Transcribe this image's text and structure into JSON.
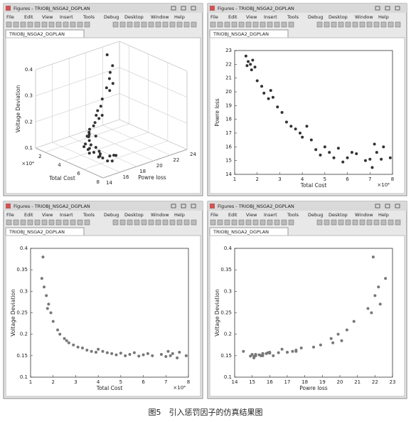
{
  "window": {
    "title": "Figures - TRIOBJ_NSGA2_DGPLAN",
    "menu": [
      "File",
      "Edit",
      "View",
      "Insert",
      "Tools",
      "Debug",
      "Desktop",
      "Window",
      "Help"
    ],
    "tab": "TRIOBJ_NSGA2_DGPLAN"
  },
  "caption": "图5　引入惩罚因子的仿真结果图",
  "chart_data": [
    {
      "type": "scatter3d",
      "xlabel": "Total Cost",
      "ylabel": "Powre loss",
      "zlabel": "Voltage Deviation",
      "x_scale_label": "×10⁴",
      "color": "#333333",
      "x": [
        1.5,
        1.6,
        1.55,
        1.7,
        1.8,
        1.75,
        1.9,
        2.0,
        2.2,
        2.3,
        2.5,
        2.6,
        2.7,
        2.9,
        3.1,
        3.3,
        3.5,
        3.7,
        3.9,
        4.0,
        4.2,
        4.4,
        4.6,
        4.8,
        5.0,
        5.2,
        5.4,
        5.6,
        5.8,
        6.0,
        6.2,
        6.4,
        6.8,
        7.0,
        7.1,
        7.2,
        7.3,
        7.5,
        7.6,
        7.9
      ],
      "y": [
        22.6,
        22.2,
        21.9,
        22.0,
        22.3,
        21.6,
        21.8,
        20.8,
        20.4,
        19.9,
        19.5,
        20.1,
        19.6,
        18.9,
        18.5,
        17.8,
        17.5,
        17.3,
        17.0,
        16.7,
        17.5,
        16.5,
        15.8,
        15.4,
        16.0,
        15.6,
        15.2,
        15.9,
        14.9,
        15.2,
        15.6,
        15.5,
        15.0,
        15.1,
        14.5,
        16.2,
        15.6,
        15.1,
        16.0,
        15.2
      ],
      "z": [
        0.33,
        0.31,
        0.38,
        0.29,
        0.27,
        0.26,
        0.25,
        0.23,
        0.21,
        0.2,
        0.19,
        0.185,
        0.18,
        0.175,
        0.17,
        0.168,
        0.163,
        0.16,
        0.158,
        0.165,
        0.16,
        0.157,
        0.155,
        0.152,
        0.156,
        0.15,
        0.153,
        0.157,
        0.149,
        0.152,
        0.155,
        0.15,
        0.153,
        0.148,
        0.16,
        0.15,
        0.155,
        0.145,
        0.158,
        0.15
      ],
      "xlim": [
        1,
        8
      ],
      "xticks": [
        2,
        4,
        6,
        8
      ],
      "ylim": [
        14,
        24
      ],
      "yticks": [
        14,
        16,
        18,
        20,
        22,
        24
      ],
      "zlim": [
        0.1,
        0.4
      ],
      "zticks": [
        0.1,
        0.2,
        0.3,
        0.4
      ]
    },
    {
      "type": "scatter",
      "xlabel": "Total Cost",
      "ylabel": "Powre loss",
      "x_scale_label": "×10⁴",
      "color": "#333333",
      "x": [
        1.5,
        1.6,
        1.55,
        1.7,
        1.8,
        1.75,
        1.9,
        2.0,
        2.2,
        2.3,
        2.5,
        2.6,
        2.7,
        2.9,
        3.1,
        3.3,
        3.5,
        3.7,
        3.9,
        4.0,
        4.2,
        4.4,
        4.6,
        4.8,
        5.0,
        5.2,
        5.4,
        5.6,
        5.8,
        6.0,
        6.2,
        6.4,
        6.8,
        7.0,
        7.1,
        7.2,
        7.3,
        7.5,
        7.6,
        7.9
      ],
      "values": [
        22.6,
        22.2,
        21.9,
        22.0,
        22.3,
        21.6,
        21.8,
        20.8,
        20.4,
        19.9,
        19.5,
        20.1,
        19.6,
        18.9,
        18.5,
        17.8,
        17.5,
        17.3,
        17.0,
        16.7,
        17.5,
        16.5,
        15.8,
        15.4,
        16.0,
        15.6,
        15.2,
        15.9,
        14.9,
        15.2,
        15.6,
        15.5,
        15.0,
        15.1,
        14.5,
        16.2,
        15.6,
        15.1,
        16.0,
        15.2
      ],
      "xlim": [
        1,
        8
      ],
      "xticks": [
        1,
        2,
        3,
        4,
        5,
        6,
        7,
        8
      ],
      "ylim": [
        14,
        23
      ],
      "yticks": [
        14,
        15,
        16,
        17,
        18,
        19,
        20,
        21,
        22,
        23
      ]
    },
    {
      "type": "scatter",
      "xlabel": "Total Cost",
      "ylabel": "Voltage Deviation",
      "x_scale_label": "×10⁴",
      "color": "#777777",
      "x": [
        1.5,
        1.6,
        1.55,
        1.7,
        1.8,
        1.75,
        1.9,
        2.0,
        2.2,
        2.3,
        2.5,
        2.6,
        2.7,
        2.9,
        3.1,
        3.3,
        3.5,
        3.7,
        3.9,
        4.0,
        4.2,
        4.4,
        4.6,
        4.8,
        5.0,
        5.2,
        5.4,
        5.6,
        5.8,
        6.0,
        6.2,
        6.4,
        6.8,
        7.0,
        7.1,
        7.2,
        7.3,
        7.5,
        7.6,
        7.9
      ],
      "values": [
        0.33,
        0.31,
        0.38,
        0.29,
        0.27,
        0.26,
        0.25,
        0.23,
        0.21,
        0.2,
        0.19,
        0.185,
        0.18,
        0.175,
        0.17,
        0.168,
        0.163,
        0.16,
        0.158,
        0.165,
        0.16,
        0.157,
        0.155,
        0.152,
        0.156,
        0.15,
        0.153,
        0.157,
        0.149,
        0.152,
        0.155,
        0.15,
        0.153,
        0.148,
        0.16,
        0.15,
        0.155,
        0.145,
        0.158,
        0.15
      ],
      "xlim": [
        1,
        8
      ],
      "xticks": [
        1,
        2,
        3,
        4,
        5,
        6,
        7,
        8
      ],
      "ylim": [
        0.1,
        0.4
      ],
      "yticks": [
        0.1,
        0.15,
        0.2,
        0.25,
        0.3,
        0.35,
        0.4
      ]
    },
    {
      "type": "scatter",
      "xlabel": "Powre loss",
      "ylabel": "Voltage Deviation",
      "color": "#777777",
      "x": [
        22.6,
        22.2,
        21.9,
        22.0,
        22.3,
        21.6,
        21.8,
        20.8,
        20.4,
        19.9,
        19.5,
        20.1,
        19.6,
        18.9,
        18.5,
        17.8,
        17.5,
        17.3,
        17.0,
        16.7,
        17.5,
        16.5,
        15.8,
        15.4,
        16.0,
        15.6,
        15.2,
        15.9,
        14.9,
        15.2,
        15.6,
        15.5,
        15.0,
        15.1,
        14.5,
        16.2,
        15.6,
        15.1,
        16.0,
        15.2
      ],
      "values": [
        0.33,
        0.31,
        0.38,
        0.29,
        0.27,
        0.26,
        0.25,
        0.23,
        0.21,
        0.2,
        0.19,
        0.185,
        0.18,
        0.175,
        0.17,
        0.168,
        0.163,
        0.16,
        0.158,
        0.165,
        0.16,
        0.157,
        0.155,
        0.152,
        0.156,
        0.15,
        0.153,
        0.157,
        0.149,
        0.152,
        0.155,
        0.15,
        0.153,
        0.148,
        0.16,
        0.15,
        0.155,
        0.145,
        0.158,
        0.15
      ],
      "xlim": [
        14,
        23
      ],
      "xticks": [
        14,
        15,
        16,
        17,
        18,
        19,
        20,
        21,
        22,
        23
      ],
      "ylim": [
        0.1,
        0.4
      ],
      "yticks": [
        0.1,
        0.15,
        0.2,
        0.25,
        0.3,
        0.35,
        0.4
      ]
    }
  ]
}
